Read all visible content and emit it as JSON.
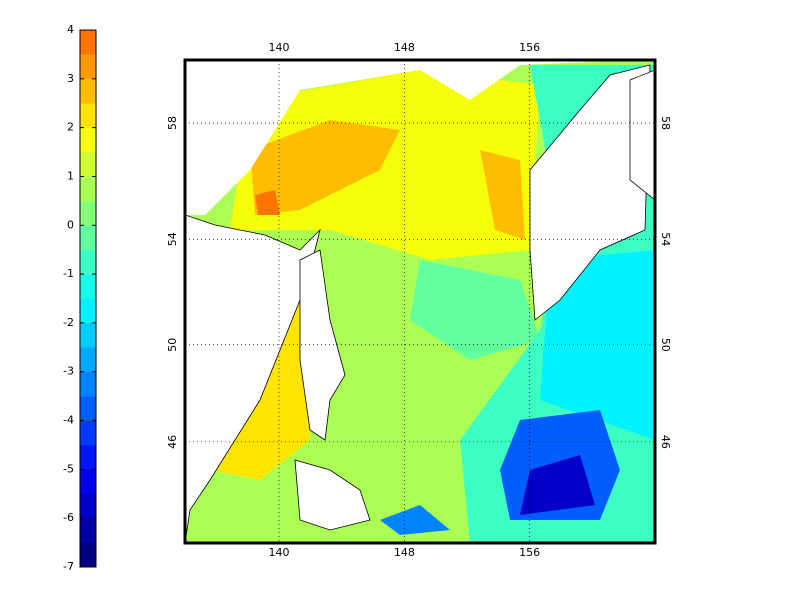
{
  "colorbar": {
    "lim": [
      -7,
      4
    ],
    "ticks": [
      4,
      3,
      2,
      1,
      0,
      -1,
      -2,
      -3,
      -4,
      -5,
      -6,
      -7
    ],
    "colors": [
      "#000080",
      "#0000a4",
      "#0000c9",
      "#0000ee",
      "#0014ff",
      "#0039ff",
      "#005eff",
      "#0083ff",
      "#00a8ff",
      "#00cdff",
      "#00f2ff",
      "#17ffe8",
      "#3cffc3",
      "#61ff9e",
      "#86ff79",
      "#abff54",
      "#d0ff2f",
      "#f5ff0a",
      "#ffe400",
      "#ffbf00",
      "#ff9a00",
      "#ff7500"
    ]
  },
  "map": {
    "projection": "mercator",
    "xlim": [
      134,
      164
    ],
    "ylim": [
      41.5,
      60
    ],
    "xticks": [
      140,
      148,
      156
    ],
    "yticks": [
      58,
      54,
      50,
      46
    ],
    "grid": true
  }
}
